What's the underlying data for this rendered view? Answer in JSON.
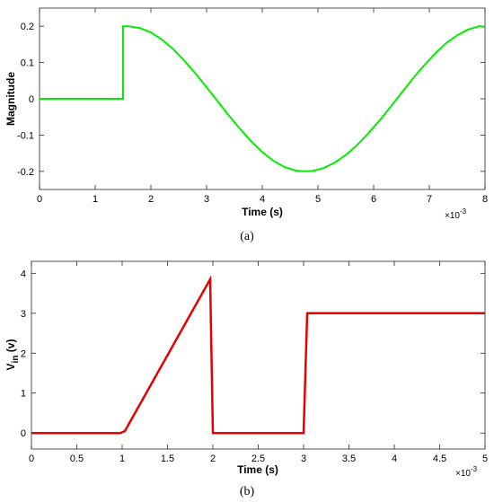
{
  "chart_data": [
    {
      "type": "line",
      "caption": "(a)",
      "xlabel": "Time (s)",
      "ylabel": "Magnitude",
      "x_exponent_label": "×10",
      "x_exponent_power": "-3",
      "xlim": [
        0,
        8
      ],
      "ylim": [
        -0.25,
        0.25
      ],
      "xticks": [
        "0",
        "1",
        "2",
        "3",
        "4",
        "5",
        "6",
        "7",
        "8"
      ],
      "yticks": [
        "-0.2",
        "-0.1",
        "0",
        "0.1",
        "0.2"
      ],
      "grid": false,
      "color": "#00ee00",
      "series": [
        {
          "x": [
            0,
            1.5,
            1.5,
            1.6,
            1.8,
            2.0,
            2.2,
            2.4,
            2.6,
            2.8,
            3.0,
            3.2,
            3.4,
            3.6,
            3.8,
            4.0,
            4.2,
            4.4,
            4.6,
            4.75,
            4.9,
            5.1,
            5.3,
            5.5,
            5.7,
            5.9,
            6.1,
            6.3,
            6.5,
            6.7,
            6.9,
            7.1,
            7.3,
            7.5,
            7.7,
            7.9,
            8.0
          ],
          "y": [
            0,
            0,
            0.2,
            0.2,
            0.195,
            0.183,
            0.163,
            0.137,
            0.105,
            0.07,
            0.032,
            -0.007,
            -0.046,
            -0.083,
            -0.117,
            -0.147,
            -0.171,
            -0.188,
            -0.198,
            -0.2,
            -0.199,
            -0.191,
            -0.176,
            -0.155,
            -0.128,
            -0.096,
            -0.061,
            -0.023,
            0.016,
            0.055,
            0.091,
            0.124,
            0.153,
            0.175,
            0.191,
            0.2,
            0.198
          ]
        }
      ]
    },
    {
      "type": "line",
      "caption": "(b)",
      "xlabel": "Time (s)",
      "ylabel_main": "V",
      "ylabel_sub": "in",
      "ylabel_tail": " (v)",
      "x_exponent_label": "×10",
      "x_exponent_power": "-3",
      "xlim": [
        0,
        5
      ],
      "ylim": [
        -0.4,
        4.3
      ],
      "xticks": [
        "0",
        "0.5",
        "1",
        "1.5",
        "2",
        "2.5",
        "3",
        "3.5",
        "4",
        "4.5",
        "5"
      ],
      "yticks": [
        "0",
        "1",
        "2",
        "3",
        "4"
      ],
      "grid": false,
      "color": "#e60000",
      "series": [
        {
          "x": [
            0,
            0.98,
            1.03,
            1.97,
            2.0,
            2.02,
            3.0,
            3.04,
            5.0
          ],
          "y": [
            0,
            0,
            0.05,
            3.85,
            0,
            0,
            0,
            3,
            3
          ]
        }
      ]
    }
  ]
}
